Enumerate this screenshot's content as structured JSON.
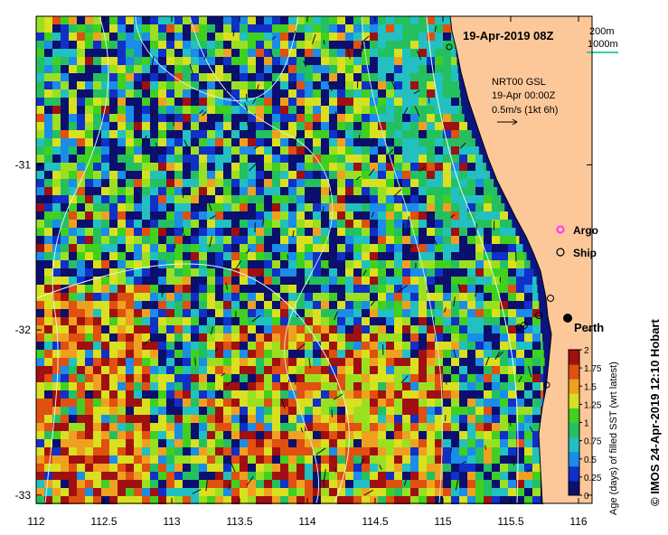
{
  "map": {
    "title": "19-Apr-2019 08Z",
    "contour_legend": {
      "line1": "200m",
      "line2": "1000m",
      "line2_color": "#33ccaa"
    },
    "current_legend": {
      "line1": "NRT00 GSL",
      "line2": "19-Apr 00:00Z",
      "line3": "0.5m/s (1kt 6h)"
    },
    "markers": [
      {
        "label": "Argo",
        "color": "#ff33ff"
      },
      {
        "label": "Ship",
        "color": "#000000"
      }
    ],
    "city": "Perth",
    "colors": {
      "land": "#fcc89a",
      "coast_line": "#000000",
      "frame": "#000000"
    }
  },
  "axes": {
    "x_ticks": [
      "112",
      "112.5",
      "113",
      "113.5",
      "114",
      "114.5",
      "115",
      "115.5",
      "116"
    ],
    "x_values": [
      112,
      112.5,
      113,
      113.5,
      114,
      114.5,
      115,
      115.5,
      116
    ],
    "y_ticks": [
      "-31",
      "-32",
      "-33"
    ],
    "y_values": [
      -31,
      -32,
      -33
    ],
    "x_range": [
      112,
      116.1
    ],
    "y_range": [
      -33.05,
      -30.1
    ]
  },
  "colorbar": {
    "label": "Age (days) of filled SST (wrt latest)",
    "ticks": [
      "2",
      "1.75",
      "1.5",
      "1.25",
      "1",
      "0.75",
      "0.5",
      "0.25",
      "0"
    ],
    "range": [
      0,
      2
    ],
    "colors": [
      "#0b0f6e",
      "#1030c8",
      "#1b8ce8",
      "#22c0c0",
      "#24c060",
      "#40d020",
      "#d8e020",
      "#f0a020",
      "#e05010",
      "#a01010"
    ]
  },
  "credit": "© IMOS 24-Apr-2019 12:10 Hobart"
}
